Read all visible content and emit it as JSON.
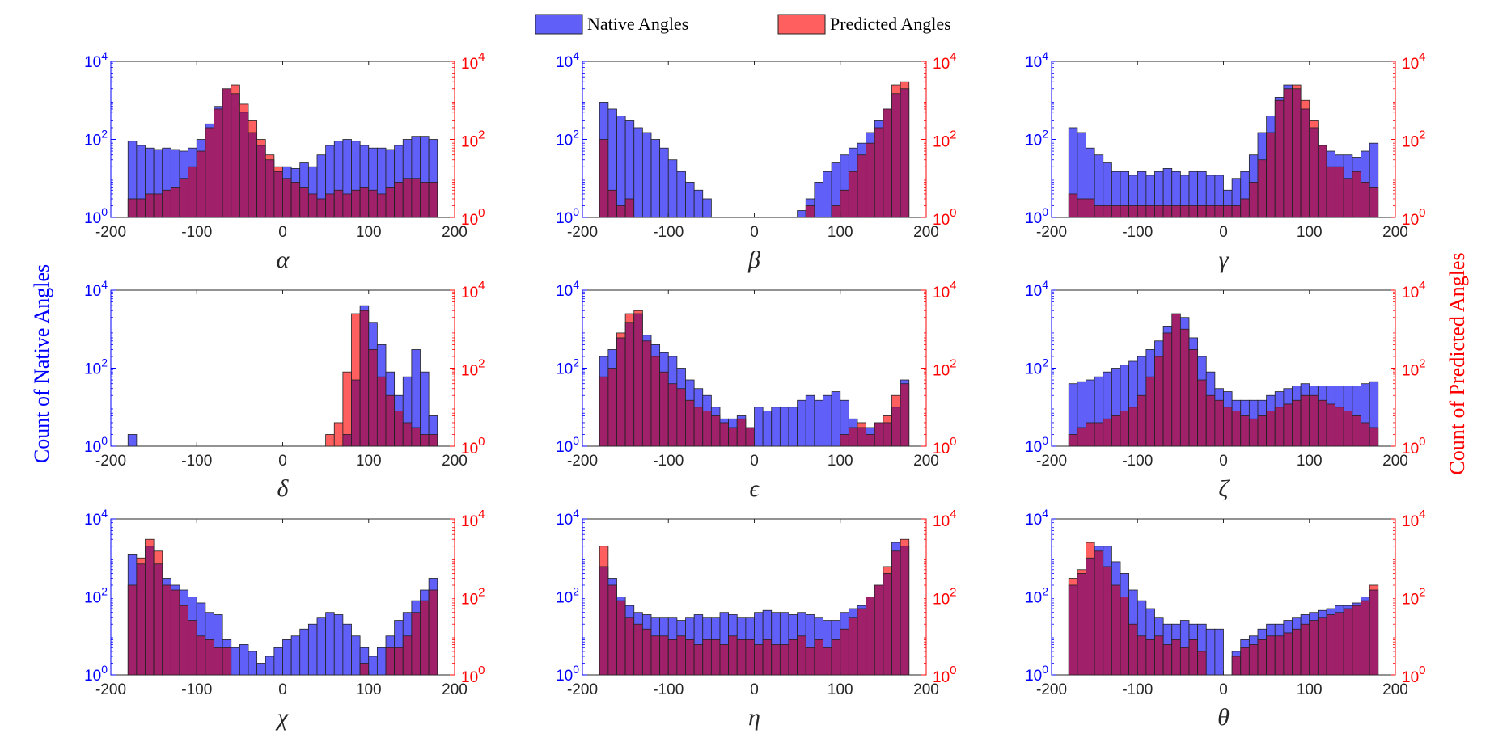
{
  "legend": {
    "native_label": "Native Angles",
    "predicted_label": "Predicted Angles"
  },
  "left_axis_label": "Count of Native Angles",
  "right_axis_label": "Count of Predicted Angles",
  "colors": {
    "native_fill": "#6060f8",
    "predicted_fill": "#ff5f5f",
    "overlap_fill": "#a0206a",
    "left_axis": "#0000ff",
    "right_axis": "#ff0000",
    "bar_edge": "#222222"
  },
  "chart_data": [
    {
      "type": "bar",
      "xlabel": "α",
      "xlim": [
        -200,
        200
      ],
      "xticks": [
        "-200",
        "-100",
        "0",
        "100",
        "200"
      ],
      "yscale": "log",
      "ylim": [
        1,
        10000
      ],
      "yticks_left": [
        "10^0",
        "10^2",
        "10^4"
      ],
      "yticks_right": [
        "10^0",
        "10^2",
        "10^4"
      ],
      "bin_edges": [
        -180,
        180
      ],
      "bin_count": 36,
      "series": [
        {
          "name": "Native Angles",
          "values": [
            90,
            70,
            60,
            55,
            60,
            55,
            50,
            60,
            100,
            250,
            700,
            2000,
            1500,
            500,
            150,
            70,
            30,
            15,
            20,
            18,
            25,
            20,
            40,
            70,
            90,
            100,
            90,
            70,
            60,
            60,
            55,
            70,
            100,
            120,
            120,
            100
          ]
        },
        {
          "name": "Predicted Angles",
          "values": [
            3,
            3,
            4,
            4,
            5,
            6,
            10,
            20,
            50,
            200,
            600,
            2000,
            2500,
            800,
            300,
            100,
            40,
            20,
            10,
            8,
            6,
            4,
            3,
            4,
            5,
            4,
            5,
            6,
            5,
            4,
            6,
            8,
            10,
            10,
            8,
            8
          ]
        }
      ]
    },
    {
      "type": "bar",
      "xlabel": "β",
      "xlim": [
        -200,
        200
      ],
      "xticks": [
        "-200",
        "-100",
        "0",
        "100",
        "200"
      ],
      "yscale": "log",
      "ylim": [
        1,
        10000
      ],
      "yticks_left": [
        "10^0",
        "10^2",
        "10^4"
      ],
      "yticks_right": [
        "10^0",
        "10^2",
        "10^4"
      ],
      "bin_edges": [
        -180,
        180
      ],
      "bin_count": 36,
      "series": [
        {
          "name": "Native Angles",
          "values": [
            900,
            600,
            400,
            300,
            200,
            150,
            100,
            60,
            30,
            15,
            8,
            5,
            3,
            0,
            0,
            0,
            0,
            0,
            0,
            0,
            0,
            0,
            0,
            1.5,
            3,
            8,
            15,
            25,
            40,
            60,
            80,
            150,
            300,
            600,
            1500,
            2000
          ]
        },
        {
          "name": "Predicted Angles",
          "values": [
            100,
            5,
            2,
            3,
            0,
            0,
            0,
            0,
            0,
            0,
            0,
            0,
            0,
            0,
            0,
            0,
            0,
            0,
            0,
            0,
            0,
            0,
            0,
            0,
            2,
            0,
            0,
            2,
            5,
            15,
            40,
            80,
            200,
            600,
            2500,
            3000
          ]
        }
      ]
    },
    {
      "type": "bar",
      "xlabel": "γ",
      "xlim": [
        -200,
        200
      ],
      "xticks": [
        "-200",
        "-100",
        "0",
        "100",
        "200"
      ],
      "yscale": "log",
      "ylim": [
        1,
        10000
      ],
      "yticks_left": [
        "10^0",
        "10^2",
        "10^4"
      ],
      "yticks_right": [
        "10^0",
        "10^2",
        "10^4"
      ],
      "bin_edges": [
        -180,
        180
      ],
      "bin_count": 36,
      "series": [
        {
          "name": "Native Angles",
          "values": [
            200,
            150,
            60,
            40,
            25,
            15,
            15,
            12,
            15,
            12,
            15,
            18,
            15,
            12,
            15,
            15,
            12,
            12,
            5,
            10,
            15,
            40,
            150,
            400,
            1200,
            2500,
            2000,
            600,
            200,
            70,
            50,
            40,
            40,
            35,
            50,
            80
          ]
        },
        {
          "name": "Predicted Angles",
          "values": [
            4,
            3,
            3,
            2,
            2,
            2,
            2,
            2,
            2,
            2,
            2,
            2,
            2,
            2,
            2,
            2,
            2,
            2,
            2,
            2,
            3,
            8,
            30,
            150,
            1000,
            2000,
            2500,
            1000,
            300,
            70,
            20,
            20,
            10,
            15,
            8,
            6
          ]
        }
      ]
    },
    {
      "type": "bar",
      "xlabel": "δ",
      "xlim": [
        -200,
        200
      ],
      "xticks": [
        "-200",
        "-100",
        "0",
        "100",
        "200"
      ],
      "yscale": "log",
      "ylim": [
        1,
        10000
      ],
      "yticks_left": [
        "10^0",
        "10^2",
        "10^4"
      ],
      "yticks_right": [
        "10^0",
        "10^2",
        "10^4"
      ],
      "bin_edges": [
        -180,
        180
      ],
      "bin_count": 36,
      "series": [
        {
          "name": "Native Angles",
          "values": [
            2,
            0,
            0,
            0,
            0,
            0,
            0,
            0,
            0,
            0,
            0,
            0,
            0,
            0,
            0,
            0,
            0,
            0,
            0,
            0,
            0,
            0,
            0,
            0,
            0,
            2,
            50,
            4000,
            1500,
            400,
            80,
            20,
            60,
            300,
            80,
            6
          ]
        },
        {
          "name": "Predicted Angles",
          "values": [
            0,
            0,
            0,
            0,
            0,
            0,
            0,
            0,
            0,
            0,
            0,
            0,
            0,
            0,
            0,
            0,
            0,
            0,
            0,
            0,
            0,
            0,
            0,
            2,
            4,
            80,
            2500,
            3000,
            300,
            60,
            20,
            8,
            4,
            3,
            2,
            2
          ]
        }
      ]
    },
    {
      "type": "bar",
      "xlabel": "ϵ",
      "xlim": [
        -200,
        200
      ],
      "xticks": [
        "-200",
        "-100",
        "0",
        "100",
        "200"
      ],
      "yscale": "log",
      "ylim": [
        1,
        10000
      ],
      "yticks_left": [
        "10^0",
        "10^2",
        "10^4"
      ],
      "yticks_right": [
        "10^0",
        "10^2",
        "10^4"
      ],
      "bin_edges": [
        -180,
        180
      ],
      "bin_count": 36,
      "series": [
        {
          "name": "Native Angles",
          "values": [
            200,
            300,
            600,
            1500,
            2500,
            700,
            400,
            250,
            200,
            100,
            50,
            30,
            20,
            10,
            5,
            5,
            6,
            3,
            10,
            8,
            10,
            10,
            10,
            15,
            20,
            15,
            20,
            25,
            15,
            5,
            3,
            3,
            4,
            4,
            10,
            50
          ]
        },
        {
          "name": "Predicted Angles",
          "values": [
            60,
            100,
            800,
            2500,
            3000,
            500,
            200,
            80,
            40,
            30,
            15,
            10,
            8,
            6,
            4,
            3,
            5,
            3,
            0,
            0,
            0,
            0,
            0,
            0,
            0,
            0,
            0,
            0,
            2,
            3,
            4,
            2,
            4,
            6,
            20,
            40
          ]
        }
      ]
    },
    {
      "type": "bar",
      "xlabel": "ζ",
      "xlim": [
        -200,
        200
      ],
      "xticks": [
        "-200",
        "-100",
        "0",
        "100",
        "200"
      ],
      "yscale": "log",
      "ylim": [
        1,
        10000
      ],
      "yticks_left": [
        "10^0",
        "10^2",
        "10^4"
      ],
      "yticks_right": [
        "10^0",
        "10^2",
        "10^4"
      ],
      "bin_edges": [
        -180,
        180
      ],
      "bin_count": 36,
      "series": [
        {
          "name": "Native Angles",
          "values": [
            40,
            45,
            50,
            60,
            80,
            100,
            120,
            150,
            200,
            300,
            500,
            1200,
            2500,
            2000,
            600,
            200,
            80,
            30,
            25,
            15,
            15,
            15,
            15,
            20,
            25,
            30,
            35,
            40,
            35,
            35,
            35,
            35,
            35,
            35,
            40,
            45
          ]
        },
        {
          "name": "Predicted Angles",
          "values": [
            2,
            3,
            4,
            4,
            5,
            6,
            8,
            10,
            20,
            60,
            200,
            800,
            2500,
            1000,
            300,
            50,
            20,
            15,
            10,
            8,
            6,
            5,
            6,
            8,
            10,
            12,
            15,
            20,
            20,
            15,
            12,
            10,
            8,
            6,
            4,
            3
          ]
        }
      ]
    },
    {
      "type": "bar",
      "xlabel": "χ",
      "xlim": [
        -200,
        200
      ],
      "xticks": [
        "-200",
        "-100",
        "0",
        "100",
        "200"
      ],
      "yscale": "log",
      "ylim": [
        1,
        10000
      ],
      "yticks_left": [
        "10^0",
        "10^2",
        "10^4"
      ],
      "yticks_right": [
        "10^0",
        "10^2",
        "10^4"
      ],
      "bin_edges": [
        -180,
        180
      ],
      "bin_count": 36,
      "series": [
        {
          "name": "Native Angles",
          "values": [
            1200,
            700,
            2000,
            700,
            300,
            200,
            150,
            100,
            70,
            40,
            35,
            8,
            5,
            6,
            4,
            2,
            3,
            5,
            8,
            10,
            15,
            20,
            30,
            40,
            35,
            20,
            10,
            5,
            3,
            5,
            10,
            25,
            40,
            80,
            150,
            300
          ]
        },
        {
          "name": "Predicted Angles",
          "values": [
            200,
            1000,
            3000,
            1500,
            200,
            150,
            60,
            25,
            10,
            8,
            5,
            5,
            0,
            0,
            0,
            0,
            0,
            0,
            0,
            0,
            0,
            0,
            0,
            0,
            0,
            0,
            0,
            2,
            0,
            0,
            5,
            5,
            10,
            40,
            80,
            150
          ]
        }
      ]
    },
    {
      "type": "bar",
      "xlabel": "η",
      "xlim": [
        -200,
        200
      ],
      "xticks": [
        "-200",
        "-100",
        "0",
        "100",
        "200"
      ],
      "yscale": "log",
      "ylim": [
        1,
        10000
      ],
      "yticks_left": [
        "10^0",
        "10^2",
        "10^4"
      ],
      "yticks_right": [
        "10^0",
        "10^2",
        "10^4"
      ],
      "bin_edges": [
        -180,
        180
      ],
      "bin_count": 36,
      "series": [
        {
          "name": "Native Angles",
          "values": [
            600,
            300,
            100,
            60,
            40,
            35,
            30,
            30,
            30,
            25,
            30,
            35,
            30,
            30,
            40,
            35,
            30,
            30,
            40,
            45,
            40,
            40,
            35,
            40,
            35,
            30,
            25,
            25,
            40,
            50,
            60,
            100,
            200,
            400,
            2500,
            2000
          ]
        },
        {
          "name": "Predicted Angles",
          "values": [
            2000,
            200,
            80,
            30,
            20,
            15,
            10,
            10,
            8,
            10,
            8,
            6,
            8,
            8,
            6,
            10,
            8,
            8,
            6,
            8,
            6,
            6,
            8,
            10,
            5,
            8,
            5,
            8,
            15,
            30,
            50,
            100,
            200,
            600,
            1500,
            3000
          ]
        }
      ]
    },
    {
      "type": "bar",
      "xlabel": "θ",
      "xlim": [
        -200,
        200
      ],
      "xticks": [
        "-200",
        "-100",
        "0",
        "100",
        "200"
      ],
      "yscale": "log",
      "ylim": [
        1,
        10000
      ],
      "yticks_left": [
        "10^0",
        "10^2",
        "10^4"
      ],
      "yticks_right": [
        "10^0",
        "10^2",
        "10^4"
      ],
      "bin_edges": [
        -180,
        180
      ],
      "bin_count": 36,
      "series": [
        {
          "name": "Native Angles",
          "values": [
            200,
            400,
            1000,
            2000,
            2000,
            800,
            400,
            150,
            80,
            50,
            30,
            20,
            20,
            25,
            20,
            20,
            15,
            15,
            1,
            4,
            8,
            10,
            15,
            20,
            20,
            25,
            30,
            35,
            40,
            45,
            50,
            60,
            60,
            70,
            100,
            150
          ]
        },
        {
          "name": "Predicted Angles",
          "values": [
            300,
            500,
            2500,
            1500,
            600,
            200,
            100,
            20,
            10,
            8,
            10,
            6,
            8,
            5,
            8,
            4,
            0,
            0,
            0,
            3,
            5,
            6,
            8,
            10,
            10,
            12,
            15,
            20,
            25,
            30,
            35,
            40,
            50,
            60,
            80,
            200
          ]
        }
      ]
    }
  ]
}
